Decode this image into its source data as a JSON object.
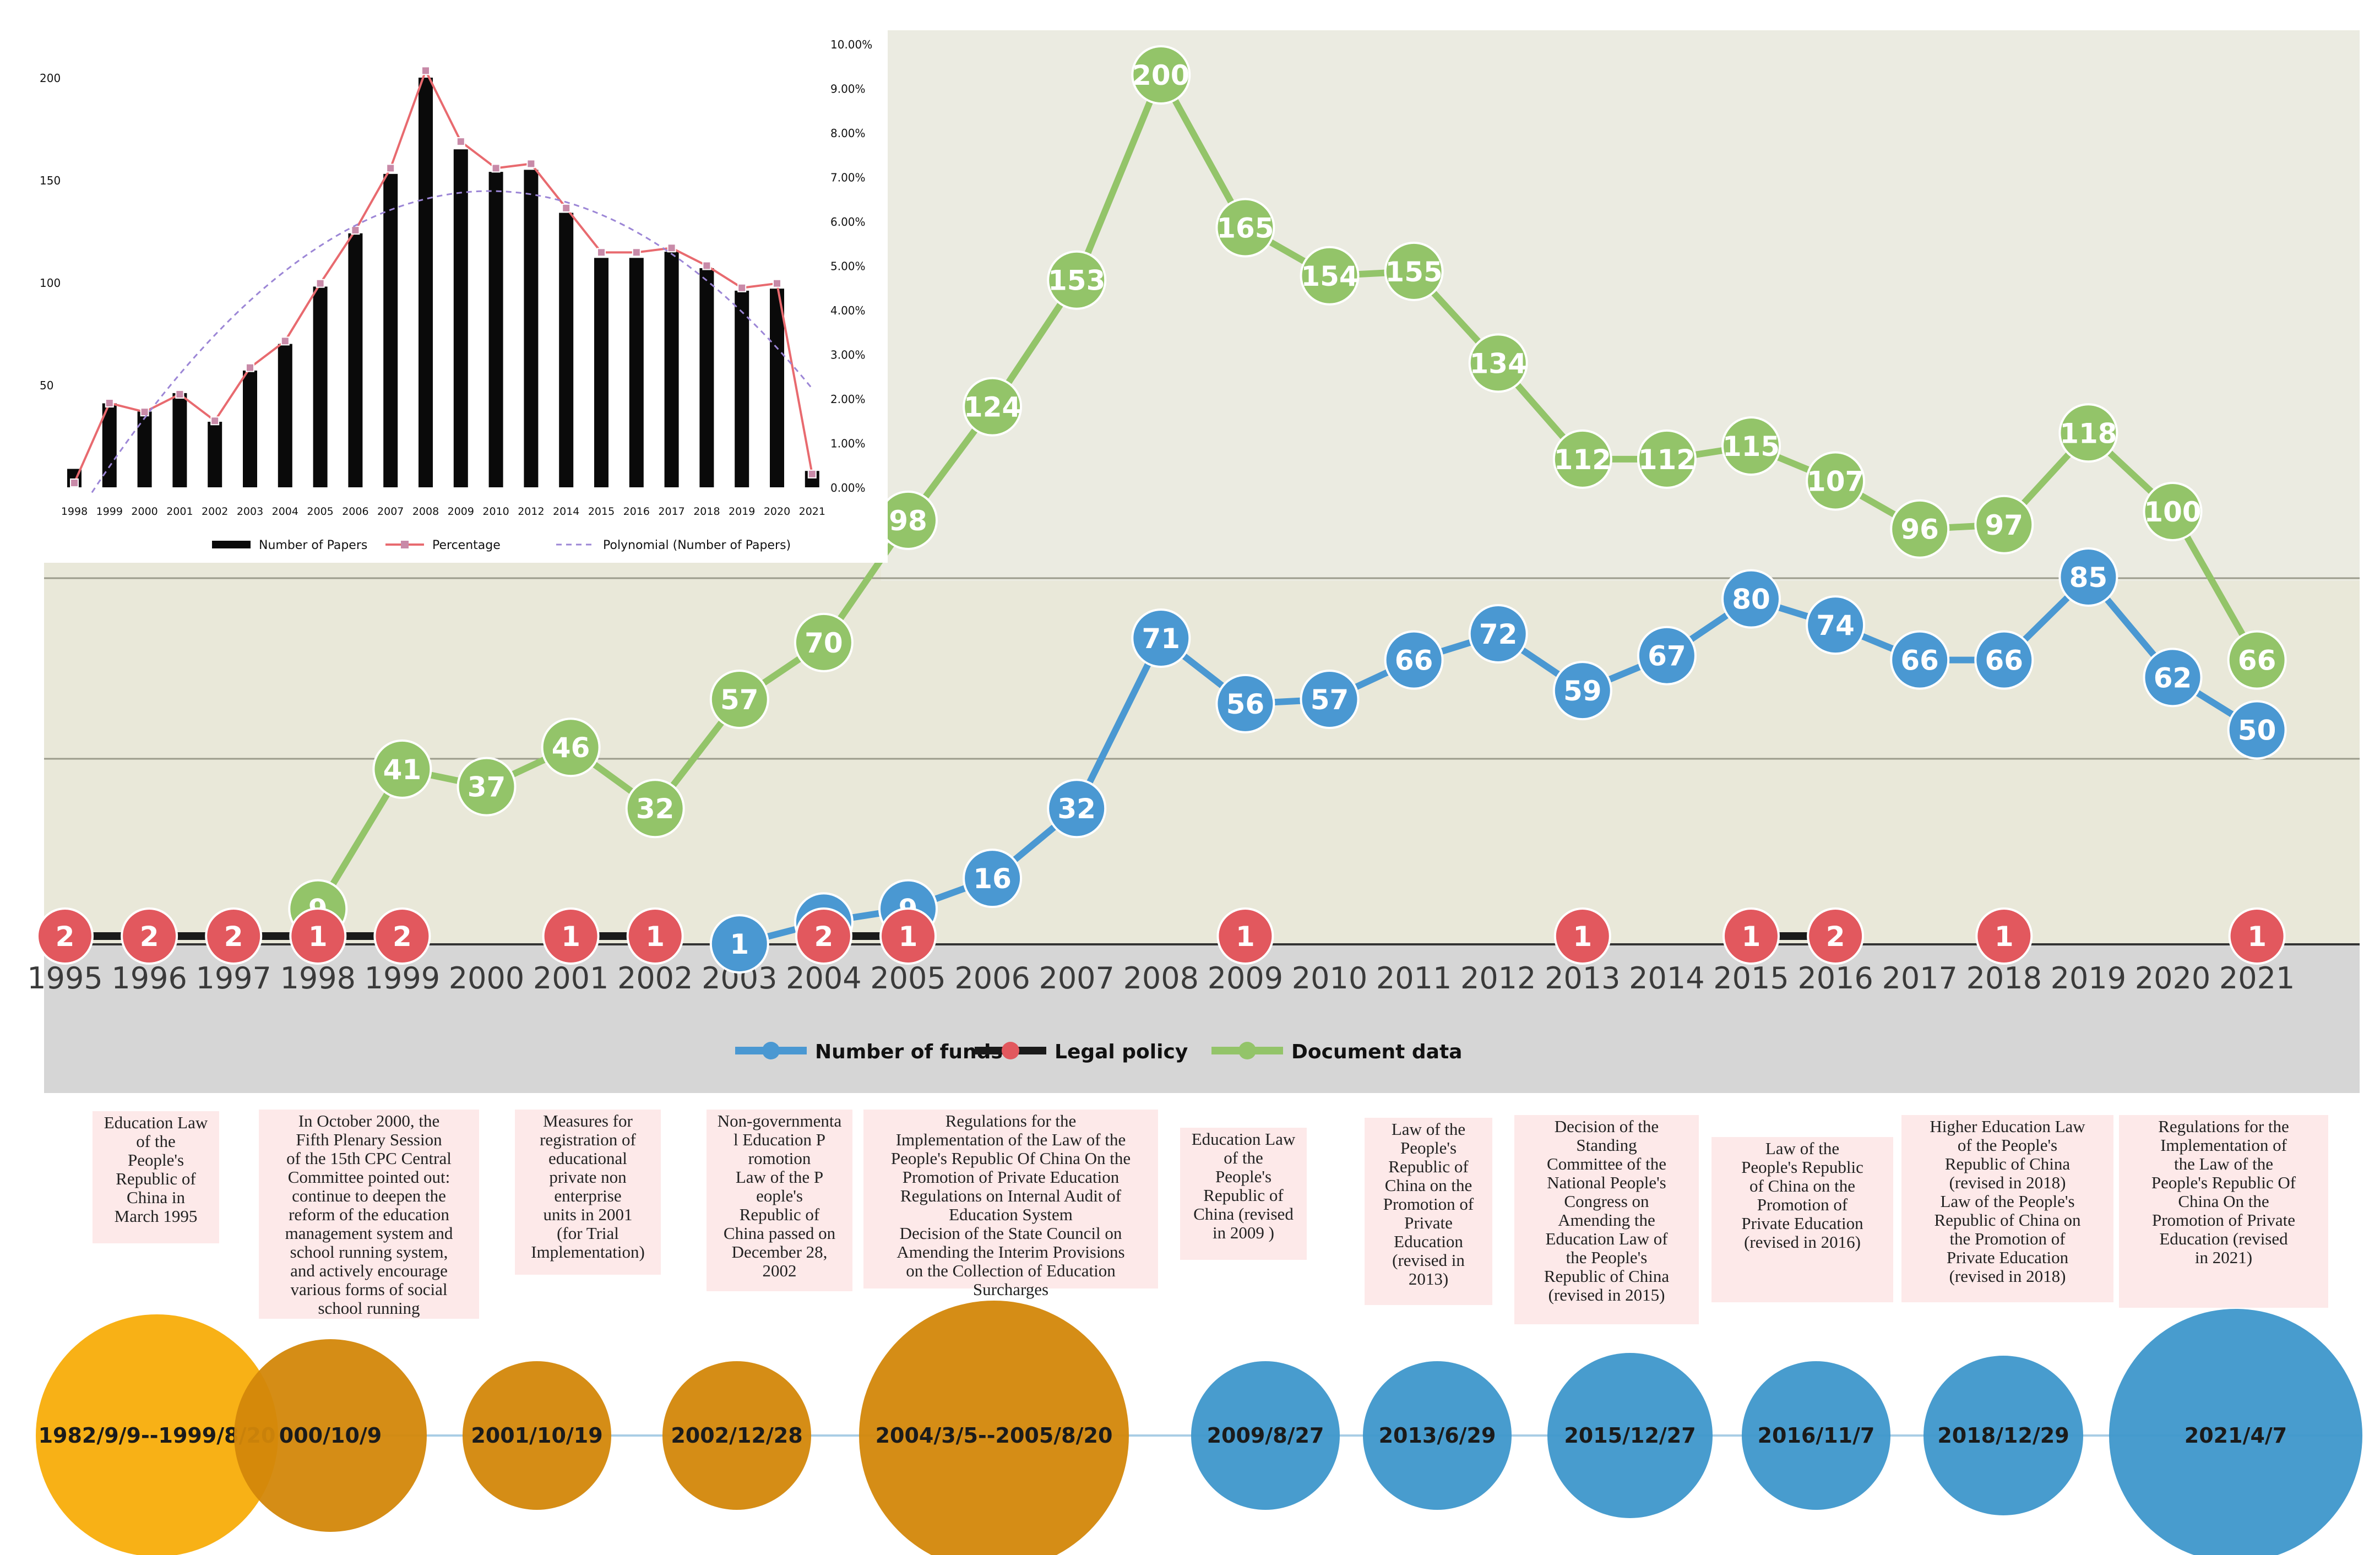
{
  "chart_data": [
    {
      "type": "line",
      "title": "",
      "legend": [
        "Number of funds",
        "Legal policy",
        "Document data"
      ],
      "categories": [
        "1995",
        "1996",
        "1997",
        "1998",
        "1999",
        "2000",
        "2001",
        "2002",
        "2003",
        "2004",
        "2005",
        "2006",
        "2007",
        "2008",
        "2009",
        "2010",
        "2011",
        "2012",
        "2013",
        "2014",
        "2015",
        "2016",
        "2017",
        "2018",
        "2019",
        "2020",
        "2021"
      ],
      "series": [
        {
          "name": "Document data",
          "color": "#93c469",
          "x": [
            "1998",
            "1999",
            "2000",
            "2001",
            "2002",
            "2003",
            "2004",
            "2005",
            "2006",
            "2007",
            "2008",
            "2009",
            "2010",
            "2011",
            "2012",
            "2013",
            "2014",
            "2015",
            "2016",
            "2017",
            "2018",
            "2019",
            "2020",
            "2021"
          ],
          "values": [
            9,
            41,
            37,
            46,
            32,
            57,
            70,
            98,
            124,
            153,
            200,
            165,
            154,
            155,
            134,
            112,
            112,
            115,
            107,
            96,
            97,
            118,
            100,
            66
          ]
        },
        {
          "name": "Number of funds",
          "color": "#4a98d2",
          "x": [
            "2003",
            "2004",
            "2005",
            "2006",
            "2007",
            "2008",
            "2009",
            "2010",
            "2011",
            "2012",
            "2013",
            "2014",
            "2015",
            "2016",
            "2017",
            "2018",
            "2019",
            "2020",
            "2021"
          ],
          "values": [
            1,
            6,
            9,
            16,
            32,
            71,
            56,
            57,
            66,
            72,
            59,
            67,
            80,
            74,
            66,
            66,
            85,
            62,
            50
          ]
        },
        {
          "name": "Legal policy",
          "color": "#e2585e",
          "x": [
            "1995",
            "1996",
            "1997",
            "1998",
            "1999",
            "2001",
            "2002",
            "2004",
            "2005",
            "2009",
            "2013",
            "2015",
            "2016",
            "2018",
            "2021"
          ],
          "values": [
            2,
            2,
            2,
            1,
            2,
            1,
            1,
            2,
            1,
            1,
            1,
            1,
            2,
            1,
            1
          ]
        }
      ]
    },
    {
      "type": "bar",
      "title": "",
      "categories": [
        "1998",
        "1999",
        "2000",
        "2001",
        "2002",
        "2003",
        "2004",
        "2005",
        "2006",
        "2007",
        "2008",
        "2009",
        "2010",
        "2012",
        "2014",
        "2015",
        "2016",
        "2017",
        "2018",
        "2019",
        "2020",
        "2021"
      ],
      "series": [
        {
          "name": "Number of Papers",
          "type": "bar",
          "values": [
            9,
            41,
            37,
            46,
            32,
            57,
            70,
            98,
            124,
            153,
            200,
            165,
            154,
            155,
            134,
            112,
            112,
            115,
            107,
            96,
            97,
            8
          ]
        },
        {
          "name": "Percentage",
          "type": "line",
          "values": [
            0.1,
            1.9,
            1.7,
            2.1,
            1.5,
            2.7,
            3.3,
            4.6,
            5.8,
            7.2,
            9.4,
            7.8,
            7.2,
            7.3,
            6.3,
            5.3,
            5.3,
            5.4,
            5.0,
            4.5,
            4.6,
            0.3
          ]
        },
        {
          "name": "Polynomial (Number of Papers)",
          "type": "trendline"
        }
      ],
      "ylim_left": [
        0,
        200
      ],
      "yticks_left": [
        "50",
        "100",
        "150",
        "200"
      ],
      "yticks_right": [
        "0.00%",
        "1.00%",
        "2.00%",
        "3.00%",
        "4.00%",
        "5.00%",
        "6.00%",
        "7.00%",
        "8.00%",
        "9.00%",
        "10.00%"
      ],
      "legend": [
        "Number of Papers",
        "Percentage",
        "Polynomial (Number of Papers)"
      ]
    }
  ],
  "notes": [
    "Education Law\nof the\nPeople's\nRepublic of\nChina in\nMarch 1995",
    "In October 2000, the\nFifth Plenary Session\nof the 15th CPC Central\nCommittee pointed out:\ncontinue to deepen the\nreform of the education\nmanagement system and\nschool running system,\nand actively encourage\nvarious forms of social\nschool running",
    "Measures for\nregistration of\neducational\nprivate non\nenterprise\nunits in 2001\n(for Trial\nImplementation)",
    "Non-governmenta\nl  Education  P\nromotion\nLaw  of  the  P\neople's\nRepublic of\nChina passed on\nDecember 28,\n2002",
    "Regulations for the\nImplementation of the Law of the\nPeople's Republic Of China On the\nPromotion of Private Education\nRegulations on Internal Audit of\nEducation System\nDecision of the State Council on\nAmending the Interim Provisions\non the Collection of Education\nSurcharges",
    "Education Law\nof the\nPeople's\nRepublic of\nChina (revised\nin 2009 )",
    "Law of the\nPeople's\nRepublic of\nChina on the\nPromotion of\nPrivate\nEducation\n(revised in\n2013)",
    "Decision of the\nStanding\nCommittee of the\nNational People's\nCongress on\nAmending the\nEducation Law of\nthe People's\nRepublic of China\n(revised in 2015)",
    "Law of the\nPeople's Republic\nof China on the\nPromotion of\nPrivate Education\n(revised in 2016)",
    "Higher Education Law\nof the People's\nRepublic of China\n(revised in 2018)\nLaw of the People's\nRepublic of China on\nthe Promotion of\nPrivate Education\n(revised in 2018)",
    "Regulations for the\nImplementation of\nthe Law of the\nPeople's Republic Of\nChina On the\nPromotion of Private\nEducation (revised\nin 2021)"
  ],
  "timeline": [
    {
      "label": "1982/9/9--1999/8/20",
      "color": "#f8ad0a"
    },
    {
      "label": "000/10/9",
      "color": "#d3870a"
    },
    {
      "label": "2001/10/19",
      "color": "#d3870a"
    },
    {
      "label": "2002/12/28",
      "color": "#d3870a"
    },
    {
      "label": "2004/3/5--2005/8/20",
      "color": "#d3870a"
    },
    {
      "label": "2009/8/27",
      "color": "#3e97cb"
    },
    {
      "label": "2013/6/29",
      "color": "#3e97cb"
    },
    {
      "label": "2015/12/27",
      "color": "#3e97cb"
    },
    {
      "label": "2016/11/7",
      "color": "#3e97cb"
    },
    {
      "label": "2018/12/29",
      "color": "#3e97cb"
    },
    {
      "label": "2021/4/7",
      "color": "#3e97cb"
    }
  ]
}
